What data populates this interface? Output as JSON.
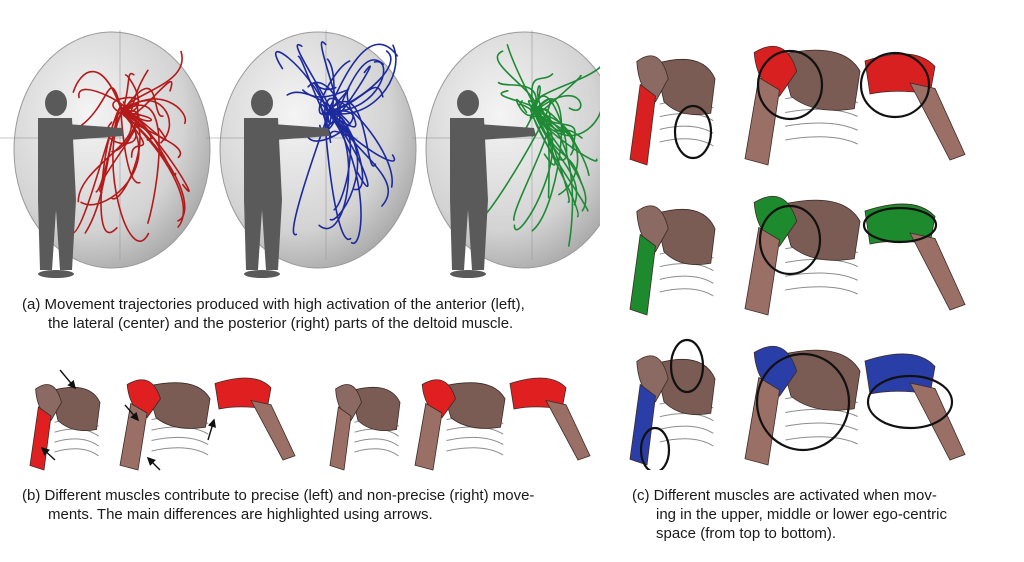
{
  "figure": {
    "panel_a": {
      "caption_lines": [
        "(a) Movement trajectories produced with high activation of the anterior (left),",
        "the lateral (center) and the posterior (right) parts of the deltoid muscle."
      ],
      "spheres": [
        {
          "part": "anterior",
          "trajectory_color": "#b51a1a"
        },
        {
          "part": "lateral",
          "trajectory_color": "#1c2a9e"
        },
        {
          "part": "posterior",
          "trajectory_color": "#1f8a35"
        }
      ]
    },
    "panel_b": {
      "caption_lines": [
        "(b) Different muscles contribute to precise (left) and non-precise (right) move-",
        "ments. The main differences are highlighted using arrows."
      ],
      "groups": [
        "precise",
        "non-precise"
      ]
    },
    "panel_c": {
      "caption_lines": [
        "(c) Different muscles are activated when mov-",
        "ing in the upper, middle or lower ego-centric",
        "space (from top to bottom)."
      ],
      "rows": [
        {
          "space": "upper",
          "color": "#d92020"
        },
        {
          "space": "middle",
          "color": "#1e8a2e"
        },
        {
          "space": "lower",
          "color": "#2a3ea8"
        }
      ]
    }
  }
}
